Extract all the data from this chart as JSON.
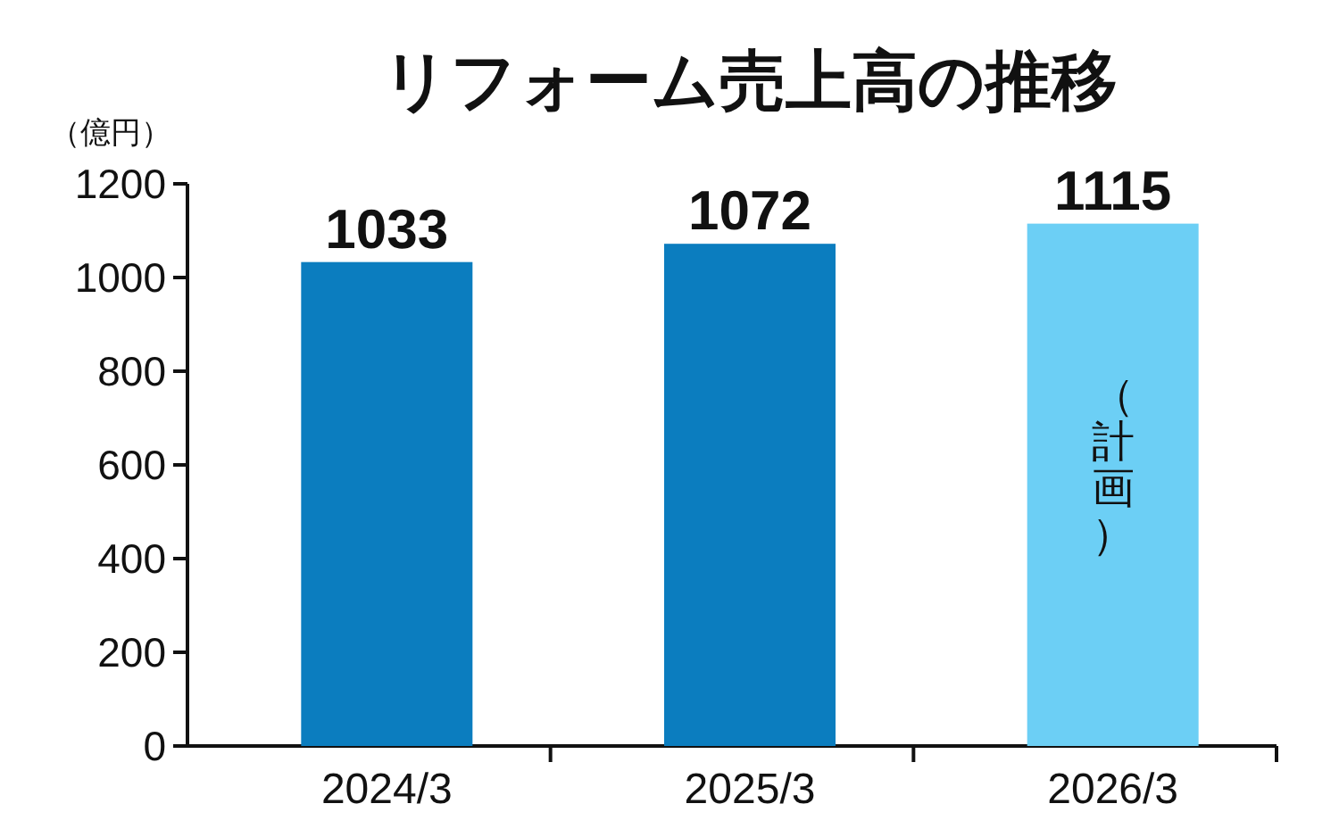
{
  "chart_data": {
    "type": "bar",
    "title": "リフォーム売上高の推移",
    "ylabel": "（億円）",
    "categories": [
      "2024/3",
      "2025/3",
      "2026/3"
    ],
    "values": [
      1033,
      1072,
      1115
    ],
    "colors": [
      "#0b7dbf",
      "#0b7dbf",
      "#6ccff5"
    ],
    "ylim": [
      0,
      1200
    ],
    "yticks": [
      0,
      200,
      400,
      600,
      800,
      1000,
      1200
    ],
    "data_labels": true,
    "grid": false,
    "annotations": [
      "（計画）"
    ]
  }
}
